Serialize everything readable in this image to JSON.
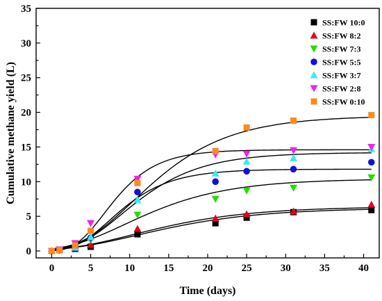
{
  "chart_data": {
    "type": "scatter",
    "title": "",
    "xlabel": "Time (days)",
    "ylabel": "Cumulative methane yield (L)",
    "xlim": [
      -2,
      42
    ],
    "ylim": [
      -1,
      35
    ],
    "xticks": [
      0,
      5,
      10,
      15,
      20,
      25,
      30,
      35,
      40
    ],
    "yticks": [
      0,
      5,
      10,
      15,
      20,
      25,
      30,
      35
    ],
    "grid": false,
    "legend": "top-right",
    "x": [
      0,
      1,
      3,
      5,
      11,
      21,
      25,
      31,
      41
    ],
    "series": [
      {
        "name": "SS:FW 10:0",
        "marker": "square",
        "color": "#000000",
        "values": [
          0,
          0.1,
          0.3,
          0.6,
          2.4,
          4.0,
          4.8,
          5.6,
          5.9
        ],
        "fit": {
          "ymax": 6.2,
          "rate": 0.26,
          "lag": 2.2
        }
      },
      {
        "name": "SS:FW 8:2",
        "marker": "triangle-up",
        "color": "#e3001b",
        "values": [
          0,
          0.1,
          0.4,
          0.9,
          3.2,
          4.7,
          5.3,
          5.7,
          6.7
        ],
        "fit": {
          "ymax": 6.4,
          "rate": 0.28,
          "lag": 2.0
        }
      },
      {
        "name": "SS:FW 7:3",
        "marker": "triangle-down",
        "color": "#22dd00",
        "values": [
          0,
          0.1,
          0.5,
          1.6,
          5.2,
          7.5,
          8.7,
          9.1,
          10.6
        ],
        "fit": {
          "ymax": 10.4,
          "rate": 0.52,
          "lag": 2.0
        }
      },
      {
        "name": "SS:FW 5:5",
        "marker": "circle",
        "color": "#1111dd",
        "values": [
          0,
          0.1,
          0.4,
          1.9,
          8.5,
          10.0,
          11.5,
          11.8,
          12.8
        ],
        "fit": {
          "ymax": 11.8,
          "rate": 1.0,
          "lag": 3.0
        }
      },
      {
        "name": "SS:FW 3:7",
        "marker": "triangle-up",
        "color": "#33eeee",
        "values": [
          0,
          0.1,
          0.5,
          2.0,
          7.4,
          11.2,
          12.9,
          13.4,
          14.7
        ],
        "fit": {
          "ymax": 14.2,
          "rate": 0.92,
          "lag": 3.2
        }
      },
      {
        "name": "SS:FW 2:8",
        "marker": "triangle-down",
        "color": "#ee22ee",
        "values": [
          0,
          0.2,
          1.1,
          4.0,
          10.4,
          13.9,
          14.0,
          14.5,
          15.0
        ],
        "fit": {
          "ymax": 14.6,
          "rate": 1.45,
          "lag": 3.0
        }
      },
      {
        "name": "SS:FW 0:10",
        "marker": "square",
        "color": "#ff8a1c",
        "values": [
          0,
          0.1,
          0.8,
          2.9,
          9.8,
          14.4,
          17.8,
          18.8,
          19.6
        ],
        "fit": {
          "ymax": 19.5,
          "rate": 1.05,
          "lag": 3.6
        }
      }
    ]
  }
}
